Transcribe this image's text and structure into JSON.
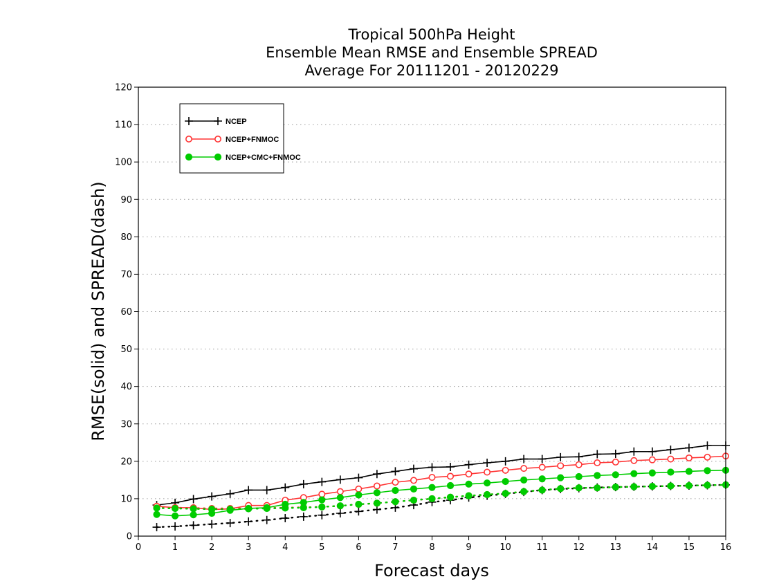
{
  "chart_data": {
    "type": "line",
    "title": [
      "Tropical 500hPa Height",
      "Ensemble Mean RMSE and Ensemble SPREAD",
      "Average For 20111201 - 20120229"
    ],
    "xlabel": "Forecast days",
    "ylabel": "RMSE(solid) and SPREAD(dash)",
    "xlim": [
      0,
      16
    ],
    "ylim": [
      0,
      120
    ],
    "xticks": [
      0,
      1,
      2,
      3,
      4,
      5,
      6,
      7,
      8,
      9,
      10,
      11,
      12,
      13,
      14,
      15,
      16
    ],
    "yticks": [
      0,
      10,
      20,
      30,
      40,
      50,
      60,
      70,
      80,
      90,
      100,
      110,
      120
    ],
    "grid": "horizontal dotted",
    "legend_position": "top-left",
    "x": [
      0.5,
      1,
      1.5,
      2,
      2.5,
      3,
      3.5,
      4,
      4.5,
      5,
      5.5,
      6,
      6.5,
      7,
      7.5,
      8,
      8.5,
      9,
      9.5,
      10,
      10.5,
      11,
      11.5,
      12,
      12.5,
      13,
      13.5,
      14,
      14.5,
      15,
      15.5,
      16
    ],
    "series": [
      {
        "name": "NCEP",
        "color": "#000000",
        "marker": "plus",
        "rmse": [
          8.3,
          8.9,
          9.9,
          10.6,
          11.3,
          12.3,
          12.3,
          13.0,
          13.9,
          14.5,
          15.1,
          15.6,
          16.6,
          17.3,
          18.0,
          18.4,
          18.5,
          19.1,
          19.6,
          20.0,
          20.6,
          20.6,
          21.1,
          21.2,
          21.9,
          22.0,
          22.6,
          22.6,
          23.1,
          23.6,
          24.2,
          24.2
        ],
        "spread": [
          2.4,
          2.6,
          2.9,
          3.2,
          3.5,
          3.9,
          4.3,
          4.8,
          5.2,
          5.6,
          6.1,
          6.6,
          7.1,
          7.6,
          8.3,
          9.1,
          9.6,
          10.3,
          10.8,
          11.3,
          11.8,
          12.3,
          12.6,
          12.8,
          13.0,
          13.1,
          13.2,
          13.3,
          13.4,
          13.5,
          13.6,
          13.7
        ]
      },
      {
        "name": "NCEP+FNMOC",
        "color": "#ff3333",
        "marker": "open-circle",
        "rmse": [
          8.0,
          7.6,
          7.6,
          7.1,
          7.3,
          8.2,
          8.2,
          9.6,
          10.3,
          11.2,
          11.9,
          12.6,
          13.4,
          14.4,
          14.9,
          15.7,
          16.0,
          16.6,
          17.1,
          17.6,
          18.1,
          18.4,
          18.8,
          19.1,
          19.6,
          19.8,
          20.2,
          20.4,
          20.6,
          20.9,
          21.1,
          21.4
        ],
        "spread": [
          7.6,
          7.6,
          7.5,
          7.4,
          7.4,
          7.4,
          7.5,
          7.6,
          7.7,
          7.8,
          8.1,
          8.5,
          8.8,
          9.2,
          9.6,
          10.0,
          10.4,
          10.8,
          11.1,
          11.4,
          11.9,
          12.3,
          12.7,
          12.9,
          12.9,
          13.1,
          13.2,
          13.3,
          13.4,
          13.5,
          13.6,
          13.7
        ]
      },
      {
        "name": "NCEP+CMC+FNMOC",
        "color": "#00cc00",
        "marker": "filled-circle",
        "rmse": [
          5.8,
          5.4,
          5.7,
          6.1,
          6.9,
          7.4,
          7.6,
          8.5,
          9.0,
          9.7,
          10.3,
          11.0,
          11.6,
          12.2,
          12.6,
          13.0,
          13.5,
          13.9,
          14.2,
          14.6,
          15.0,
          15.3,
          15.6,
          15.9,
          16.2,
          16.4,
          16.7,
          16.9,
          17.1,
          17.3,
          17.5,
          17.6
        ],
        "spread": [
          7.5,
          7.4,
          7.3,
          7.2,
          7.2,
          7.3,
          7.4,
          7.5,
          7.6,
          7.8,
          8.1,
          8.5,
          8.8,
          9.2,
          9.6,
          10.0,
          10.4,
          10.8,
          11.1,
          11.4,
          11.9,
          12.3,
          12.7,
          12.9,
          12.9,
          13.1,
          13.2,
          13.3,
          13.4,
          13.5,
          13.6,
          13.7
        ]
      }
    ]
  }
}
